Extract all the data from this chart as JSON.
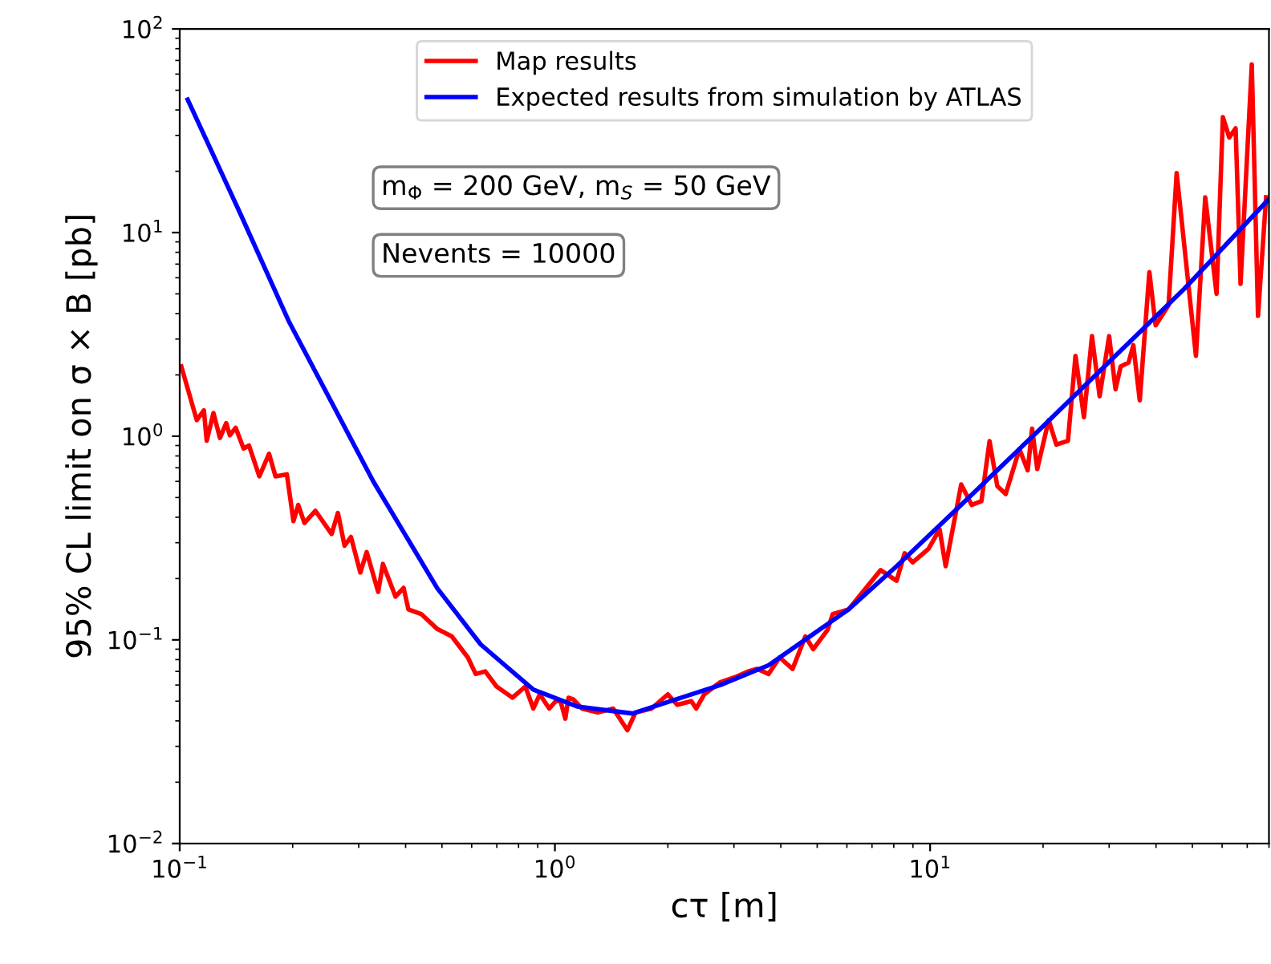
{
  "chart_data": {
    "type": "line",
    "xlabel": "cτ [m]",
    "ylabel": "95% CL limit on σ × B [pb]",
    "log": "xy",
    "grid": false,
    "legend": "top",
    "line_style": "solid",
    "marker": "none",
    "xlim": [
      0.1,
      80
    ],
    "xticks": [
      {
        "value": 0.1,
        "label": "10$^{−1}$"
      },
      {
        "value": 1,
        "label": "10$^{0}$"
      },
      {
        "value": 10,
        "label": "10$^{1}$"
      }
    ],
    "ylim": [
      0.01,
      100
    ],
    "yticks": [
      {
        "value": 0.01,
        "label": "10$^{−2}$"
      },
      {
        "value": 0.1,
        "label": "10$^{−1}$"
      },
      {
        "value": 1,
        "label": "10$^{0}$"
      },
      {
        "value": 10,
        "label": "10$^{1}$"
      },
      {
        "value": 100,
        "label": "10$^{2}$"
      }
    ],
    "annotations": [
      "m$_{Φ}$ = 200 GeV, m$_{S}$ = 50 GeV",
      "Nevents = 10000"
    ],
    "series": [
      {
        "name": "Map results",
        "color": "#ff0000",
        "x": [
          0.101,
          0.111,
          0.116,
          0.118,
          0.123,
          0.128,
          0.133,
          0.136,
          0.141,
          0.148,
          0.153,
          0.163,
          0.173,
          0.18,
          0.193,
          0.201,
          0.207,
          0.215,
          0.23,
          0.254,
          0.264,
          0.275,
          0.286,
          0.303,
          0.315,
          0.338,
          0.348,
          0.376,
          0.395,
          0.407,
          0.44,
          0.486,
          0.531,
          0.586,
          0.615,
          0.652,
          0.699,
          0.771,
          0.834,
          0.876,
          0.911,
          0.966,
          1.005,
          1.035,
          1.066,
          1.087,
          1.12,
          1.18,
          1.3,
          1.43,
          1.56,
          1.64,
          1.81,
          2.0,
          2.12,
          2.31,
          2.38,
          2.5,
          2.76,
          3.05,
          3.27,
          3.46,
          3.71,
          3.97,
          4.3,
          4.65,
          4.88,
          5.33,
          5.5,
          6.06,
          7.38,
          8.14,
          8.55,
          8.98,
          9.9,
          10.6,
          11.0,
          12.1,
          12.9,
          13.7,
          14.4,
          15.1,
          15.9,
          17.3,
          18.2,
          18.7,
          19.3,
          20.7,
          21.7,
          23.3,
          24.4,
          25.7,
          27.0,
          28.3,
          30.0,
          31.2,
          32.2,
          33.8,
          34.8,
          36.2,
          38.4,
          39.9,
          43.2,
          45.4,
          51.1,
          54.1,
          58.0,
          60.3,
          62.7,
          65.2,
          67.2,
          72.0,
          74.8,
          78.6
        ],
        "values": [
          2.2,
          1.2,
          1.34,
          0.95,
          1.3,
          0.98,
          1.16,
          1.01,
          1.1,
          0.87,
          0.9,
          0.635,
          0.82,
          0.635,
          0.65,
          0.383,
          0.46,
          0.375,
          0.43,
          0.331,
          0.42,
          0.29,
          0.32,
          0.214,
          0.27,
          0.172,
          0.236,
          0.163,
          0.18,
          0.141,
          0.134,
          0.113,
          0.104,
          0.082,
          0.068,
          0.07,
          0.059,
          0.052,
          0.059,
          0.046,
          0.054,
          0.046,
          0.05,
          0.05,
          0.041,
          0.052,
          0.051,
          0.046,
          0.044,
          0.046,
          0.036,
          0.044,
          0.046,
          0.054,
          0.048,
          0.05,
          0.046,
          0.054,
          0.062,
          0.066,
          0.07,
          0.072,
          0.068,
          0.082,
          0.072,
          0.104,
          0.09,
          0.112,
          0.134,
          0.141,
          0.22,
          0.195,
          0.266,
          0.24,
          0.28,
          0.349,
          0.23,
          0.58,
          0.46,
          0.48,
          0.946,
          0.57,
          0.52,
          0.865,
          0.68,
          1.09,
          0.69,
          1.2,
          0.91,
          0.95,
          2.48,
          1.24,
          3.1,
          1.57,
          3.1,
          1.7,
          2.2,
          2.3,
          2.8,
          1.5,
          6.4,
          3.5,
          4.4,
          19.6,
          2.48,
          14.9,
          5.0,
          36.9,
          29.3,
          32.5,
          5.6,
          67,
          3.9,
          14.9
        ]
      },
      {
        "name": "Expected results from simulation by ATLAS",
        "color": "#0000ff",
        "x": [
          0.105,
          0.145,
          0.195,
          0.328,
          0.486,
          0.634,
          0.876,
          1.15,
          1.61,
          2.76,
          3.71,
          6.06,
          8.14,
          12.1,
          19.8,
          47.6,
          79.4
        ],
        "values": [
          45,
          12.4,
          3.69,
          0.6,
          0.179,
          0.095,
          0.057,
          0.047,
          0.0435,
          0.06,
          0.075,
          0.141,
          0.23,
          0.46,
          1.1,
          5.3,
          14.4
        ]
      }
    ]
  }
}
